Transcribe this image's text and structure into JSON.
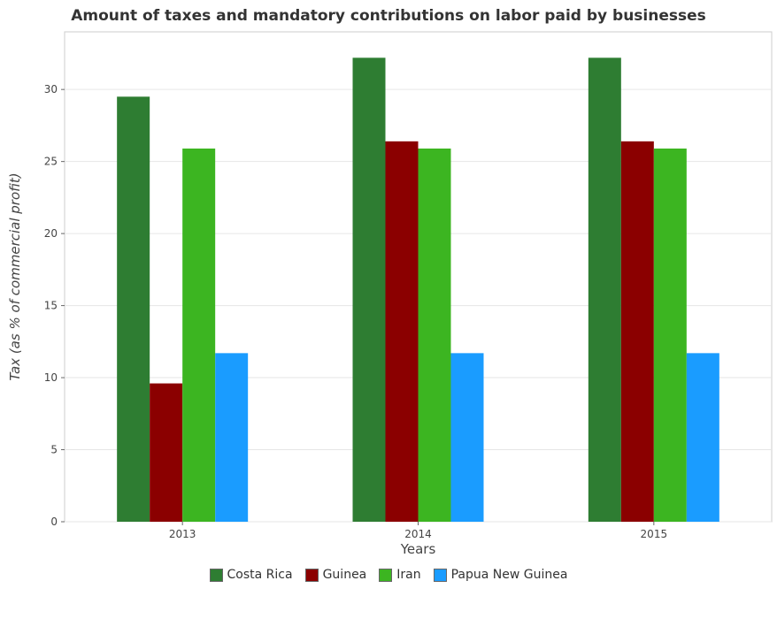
{
  "chart_data": {
    "type": "bar",
    "title": "Amount of taxes and mandatory contributions on labor paid by businesses",
    "xlabel": "Years",
    "ylabel": "Tax (as % of commercial profit)",
    "categories": [
      "2013",
      "2014",
      "2015"
    ],
    "ylim": [
      0,
      34
    ],
    "yticks": [
      0,
      5,
      10,
      15,
      20,
      25,
      30
    ],
    "grid": true,
    "legend_position": "bottom",
    "series": [
      {
        "name": "Costa Rica",
        "color": "#2e7d32",
        "values": [
          29.5,
          32.2,
          32.2
        ]
      },
      {
        "name": "Guinea",
        "color": "#8b0000",
        "values": [
          9.6,
          26.4,
          26.4
        ]
      },
      {
        "name": "Iran",
        "color": "#3cb521",
        "values": [
          25.9,
          25.9,
          25.9
        ]
      },
      {
        "name": "Papua New Guinea",
        "color": "#1a9cff",
        "values": [
          11.7,
          11.7,
          11.7
        ]
      }
    ]
  }
}
